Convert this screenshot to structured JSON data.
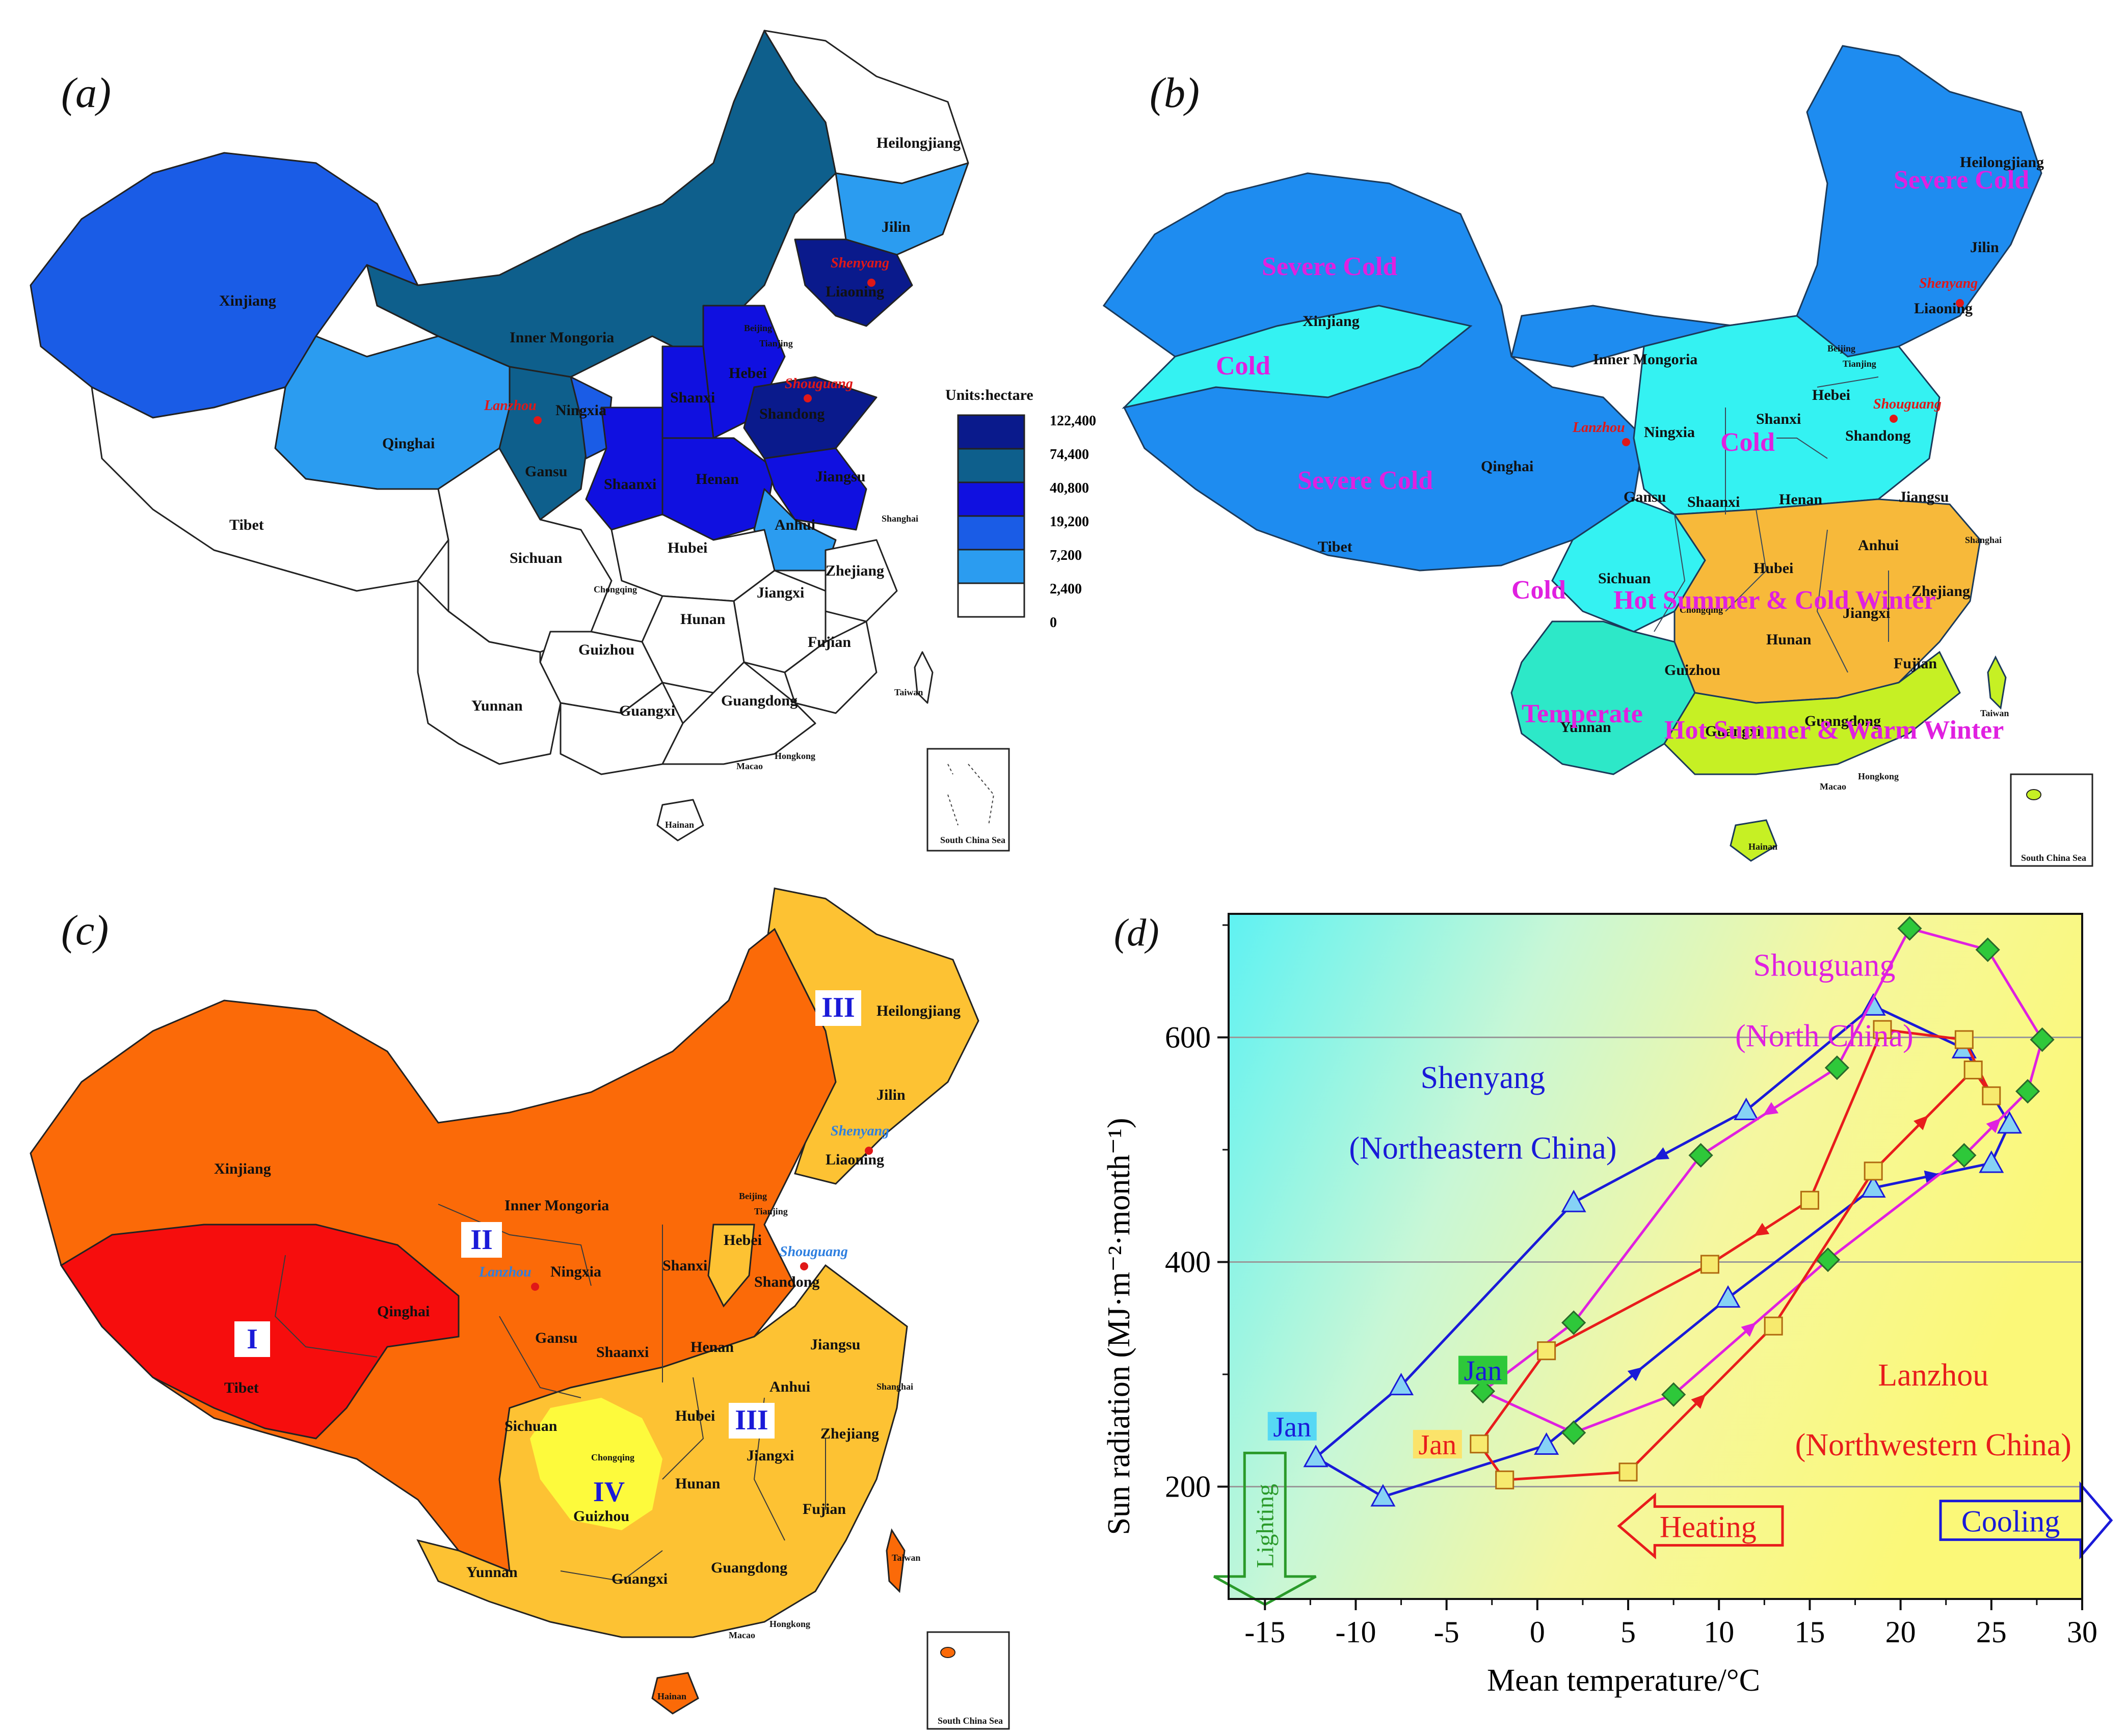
{
  "panels": {
    "a": {
      "tag": "(a)",
      "legend_title": "Units:hectare",
      "legend": [
        {
          "label": "122,400",
          "color": "#0a1a8c"
        },
        {
          "label": "74,400",
          "color": "#0e5f8c"
        },
        {
          "label": "40,800",
          "color": "#1010e0"
        },
        {
          "label": "19,200",
          "color": "#1a5ce6"
        },
        {
          "label": "7,200",
          "color": "#2b9cf0"
        },
        {
          "label": "2,400",
          "color": "#ffffff"
        },
        {
          "label": "0",
          "color": "#ffffff"
        }
      ],
      "regions": {
        "heilongjiang": "Heilongjiang",
        "jilin": "Jilin",
        "liaoning": "Liaoning",
        "xinjiang": "Xinjiang",
        "inner_mongoria": "Inner Mongoria",
        "beijing": "Beijing",
        "tianjing": "Tianjing",
        "hebei": "Hebei",
        "shanxi": "Shanxi",
        "shandong": "Shandong",
        "ningxia": "Ningxia",
        "qinghai": "Qinghai",
        "gansu": "Gansu",
        "shaanxi": "Shaanxi",
        "henan": "Henan",
        "jiangsu": "Jiangsu",
        "anhui": "Anhui",
        "shanghai": "Shanghai",
        "tibet": "Tibet",
        "sichuan": "Sichuan",
        "hubei": "Hubei",
        "chongqing": "Chongqing",
        "zhejiang": "Zhejiang",
        "jiangxi": "Jiangxi",
        "hunan": "Hunan",
        "guizhou": "Guizhou",
        "fujian": "Fujian",
        "taiwan": "Taiwan",
        "yunnan": "Yunnan",
        "guangxi": "Guangxi",
        "guangdong": "Guangdong",
        "hongkong": "Hongkong",
        "macao": "Macao",
        "hainan": "Hainan",
        "south_china_sea": "South China Sea"
      },
      "cities": {
        "shenyang": "Shenyang",
        "shouguang": "Shouguang",
        "lanzhou": "Lanzhou"
      }
    },
    "b": {
      "tag": "(b)",
      "zones": {
        "severe_cold": "Severe Cold",
        "cold": "Cold",
        "hot_summer_cold_winter": "Hot Summer & Cold Winter",
        "temperate": "Temperate",
        "hot_summer_warm_winter": "Hot Summer & Warm Winter"
      },
      "colors": {
        "severe_cold": "#1e8cf0",
        "cold": "#34f2f2",
        "hscw": "#f7b93a",
        "temperate": "#2de8c8",
        "hsww": "#c6f024"
      }
    },
    "c": {
      "tag": "(c)",
      "zones": {
        "I": "I",
        "II": "II",
        "III": "III",
        "IV": "IV"
      },
      "colors": {
        "I": "#f60d0d",
        "II": "#fb6a08",
        "III": "#fdc233",
        "IV": "#fdfa3c"
      }
    }
  },
  "chart_data": {
    "type": "line",
    "tag": "(d)",
    "xlabel": "Mean temperature/°C",
    "ylabel": "Sun radiation (MJ·m⁻²·month⁻¹)",
    "xlim": [
      -17,
      30
    ],
    "ylim": [
      100,
      710
    ],
    "xticks": [
      -15,
      -10,
      -5,
      0,
      5,
      10,
      15,
      20,
      25,
      30
    ],
    "yticks": [
      200,
      400,
      600
    ],
    "grid": "horizontal",
    "series": [
      {
        "name": "Shenyang (Northeastern China)",
        "color": "#1a1ad8",
        "marker": "triangle",
        "marker_color": "#86d2f5",
        "x": [
          -12.2,
          -8.5,
          0.5,
          10.5,
          18.5,
          25,
          26,
          23.5,
          18.5,
          11.5,
          2,
          -7.5
        ],
        "y": [
          226,
          191,
          237,
          368,
          466,
          488,
          523,
          590,
          628,
          535,
          453,
          290
        ]
      },
      {
        "name": "Shouguang (North China)",
        "color": "#e020e0",
        "marker": "diamond",
        "marker_color": "#2ec83a",
        "x": [
          -3,
          2,
          7.5,
          16,
          23.5,
          27,
          27.8,
          24.8,
          20.5,
          16.5,
          9,
          2
        ],
        "y": [
          285,
          248,
          282,
          402,
          495,
          552,
          598,
          678,
          697,
          573,
          495,
          346
        ]
      },
      {
        "name": "Lanzhou (Northwestern China)",
        "color": "#e81c1c",
        "marker": "square",
        "marker_color": "#f7ea6e",
        "x": [
          -3.2,
          -1.8,
          5,
          13,
          18.5,
          24,
          25,
          23.5,
          19,
          15,
          9.5,
          0.5
        ],
        "y": [
          238,
          206,
          213,
          343,
          481,
          571,
          548,
          598,
          607,
          455,
          398,
          321
        ]
      }
    ],
    "annotations": {
      "shenyang_name": "Shenyang",
      "shenyang_region": "(Northeastern China)",
      "shouguang_name": "Shouguang",
      "shouguang_region": "(North China)",
      "lanzhou_name": "Lanzhou",
      "lanzhou_region": "(Northwestern China)",
      "jan": "Jan"
    },
    "bands": {
      "lighting": "Lighting",
      "heating": "Heating",
      "cooling": "Cooling"
    }
  }
}
